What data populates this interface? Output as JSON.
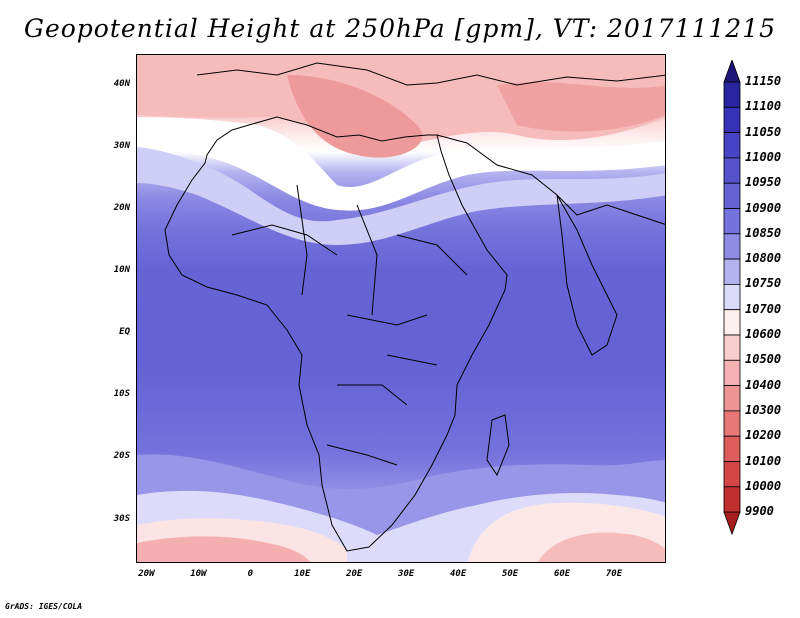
{
  "title": "Geopotential Height at 250hPa [gpm], VT: 2017111215",
  "footer": "GrADS: IGES/COLA",
  "map": {
    "lat_labels": [
      "40N",
      "30N",
      "20N",
      "10N",
      "EQ",
      "10S",
      "20S",
      "30S"
    ],
    "lat_values": [
      40,
      30,
      20,
      10,
      0,
      -10,
      -20,
      -30
    ],
    "lon_labels": [
      "20W",
      "10W",
      "0",
      "10E",
      "20E",
      "30E",
      "40E",
      "50E",
      "60E",
      "70E"
    ],
    "lon_values": [
      -20,
      -10,
      0,
      10,
      20,
      30,
      40,
      50,
      60,
      70
    ],
    "lon_range": [
      -22,
      80
    ],
    "lat_range": [
      -37,
      45
    ]
  },
  "colorbar": {
    "levels": [
      "11150",
      "11100",
      "11050",
      "11000",
      "10950",
      "10900",
      "10850",
      "10800",
      "10750",
      "10700",
      "10600",
      "10500",
      "10400",
      "10300",
      "10200",
      "10100",
      "10000",
      "9900"
    ],
    "colors": [
      "#1e1478",
      "#2a24a0",
      "#3632b8",
      "#4643c4",
      "#5653cc",
      "#6361d4",
      "#7472dc",
      "#8e8ce4",
      "#b4b3f0",
      "#dcdcfa",
      "#fcefef",
      "#f8cfcf",
      "#f4b2b2",
      "#ee9494",
      "#e77878",
      "#de5e5e",
      "#d44545",
      "#c22f2f",
      "#a81e1e"
    ]
  }
}
